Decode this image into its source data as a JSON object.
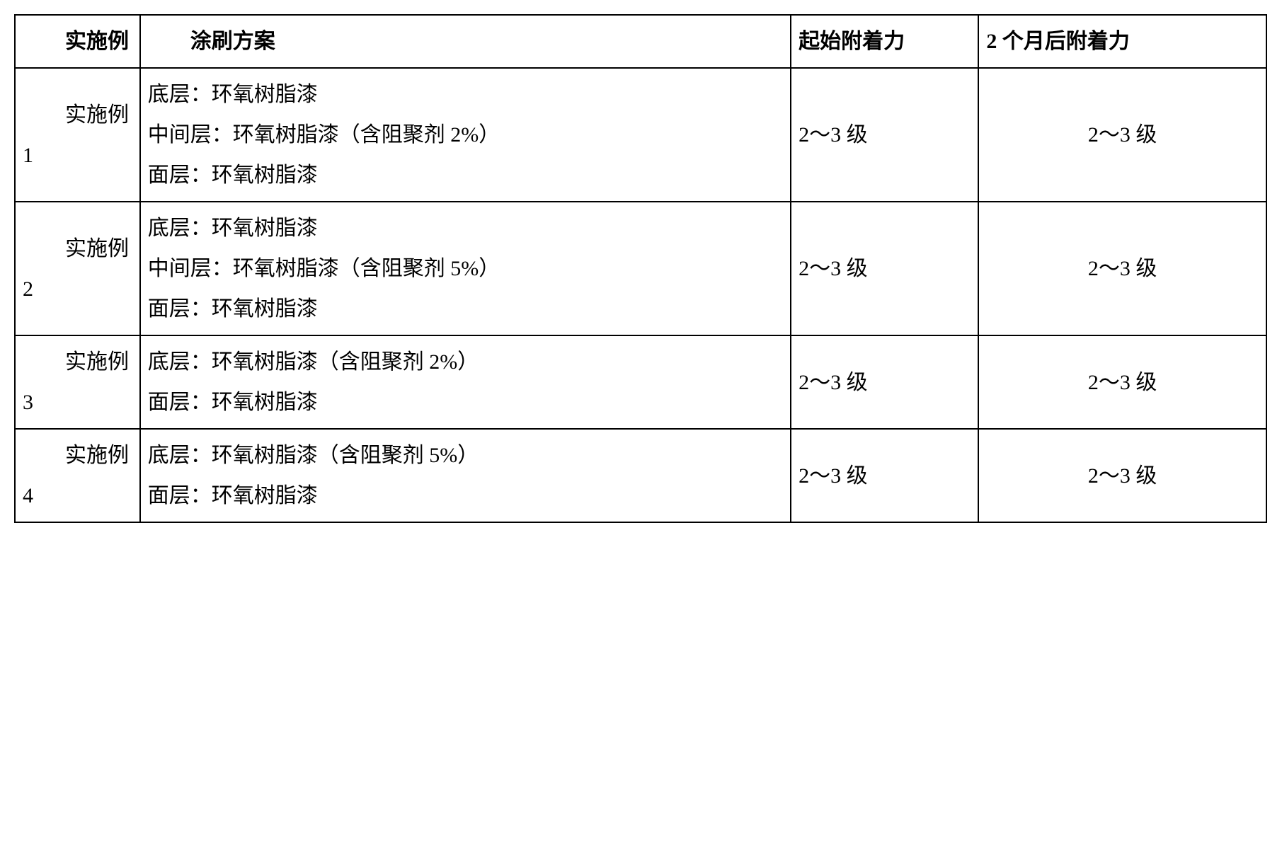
{
  "table": {
    "columns": {
      "example": "实施例",
      "scheme": "涂刷方案",
      "start_adhesion": "起始附着力",
      "after_adhesion": "2 个月后附着力"
    },
    "rows": [
      {
        "example": "实施例 1",
        "scheme_lines": [
          "底层：环氧树脂漆",
          "中间层：环氧树脂漆（含阻聚剂 2%）",
          "面层：环氧树脂漆"
        ],
        "start": "2～3 级",
        "after": "2～3 级"
      },
      {
        "example": "实施例 2",
        "scheme_lines": [
          "底层：环氧树脂漆",
          "中间层：环氧树脂漆（含阻聚剂 5%）",
          "面层：环氧树脂漆"
        ],
        "start": "2～3 级",
        "after": "2～3 级"
      },
      {
        "example": "实施例 3",
        "scheme_lines": [
          "底层：环氧树脂漆（含阻聚剂 2%）",
          "面层：环氧树脂漆"
        ],
        "start": "2～3 级",
        "after": "2～3 级"
      },
      {
        "example": "实施例 4",
        "scheme_lines": [
          "底层：环氧树脂漆（含阻聚剂 5%）",
          "面层：环氧树脂漆"
        ],
        "start": "2～3 级",
        "after": "2～3 级"
      }
    ]
  },
  "style": {
    "border_color": "#000000",
    "background_color": "#ffffff",
    "text_color": "#000000",
    "font_size_pt": 22,
    "font_family": "SimSun"
  }
}
